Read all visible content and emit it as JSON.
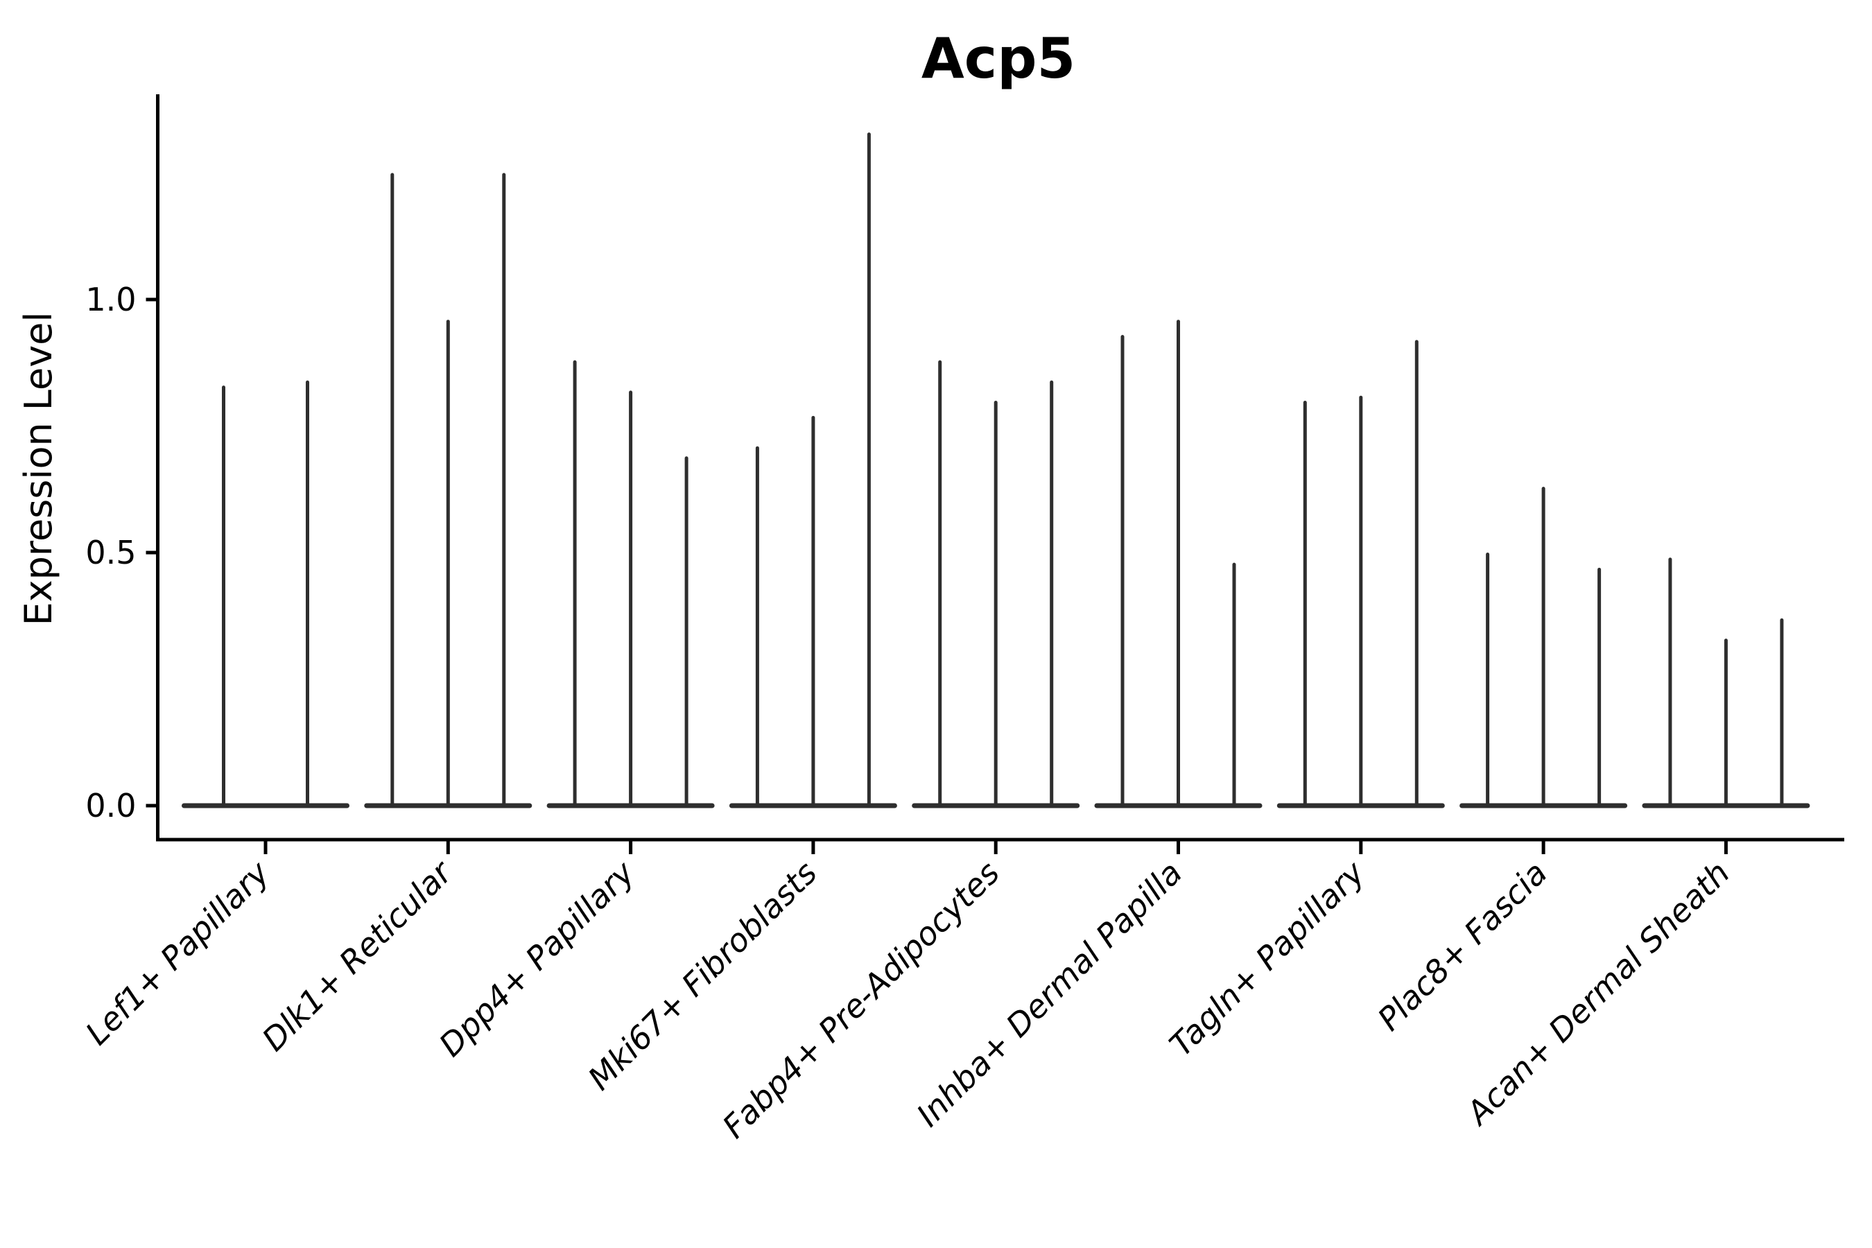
{
  "figure": {
    "background": "#ffffff",
    "ink_color": "#000000",
    "violin_color": "#2e2e2e"
  },
  "chart_data": {
    "type": "violin",
    "variant": "needle-violin (collapsed violins: flat zero-density base with thin spikes marking max expression)",
    "title": "Acp5",
    "xlabel": "",
    "ylabel": "Expression Level",
    "legend": "none",
    "grid": false,
    "ylim": [
      -0.07,
      1.41
    ],
    "yticks": [
      {
        "value": 0.0,
        "label": "0.0"
      },
      {
        "value": 0.5,
        "label": "0.5"
      },
      {
        "value": 1.0,
        "label": "1.0"
      }
    ],
    "categories": [
      "Lef1+ Papillary",
      "Dlk1+ Reticular",
      "Dpp4+ Papillary",
      "Mki67+ Fibroblasts",
      "Fabp4+ Pre-Adipocytes",
      "Inhba+ Dermal Papilla",
      "Tagln+ Papillary",
      "Plac8+ Fascia",
      "Acan+ Dermal Sheath"
    ],
    "groups": [
      {
        "category": "Lef1+ Papillary",
        "spike_values": [
          0.83,
          0.84
        ]
      },
      {
        "category": "Dlk1+ Reticular",
        "spike_values": [
          1.25,
          0.96,
          1.25
        ]
      },
      {
        "category": "Dpp4+ Papillary",
        "spike_values": [
          0.88,
          0.82,
          0.69
        ]
      },
      {
        "category": "Mki67+ Fibroblasts",
        "spike_values": [
          0.71,
          0.77,
          1.33
        ]
      },
      {
        "category": "Fabp4+ Pre-Adipocytes",
        "spike_values": [
          0.88,
          0.8,
          0.84
        ]
      },
      {
        "category": "Inhba+ Dermal Papilla",
        "spike_values": [
          0.93,
          0.96,
          0.48
        ]
      },
      {
        "category": "Tagln+ Papillary",
        "spike_values": [
          0.8,
          0.81,
          0.92
        ]
      },
      {
        "category": "Plac8+ Fascia",
        "spike_values": [
          0.5,
          0.63,
          0.47
        ]
      },
      {
        "category": "Acan+ Dermal Sheath",
        "spike_values": [
          0.49,
          0.33,
          0.37
        ]
      }
    ]
  }
}
